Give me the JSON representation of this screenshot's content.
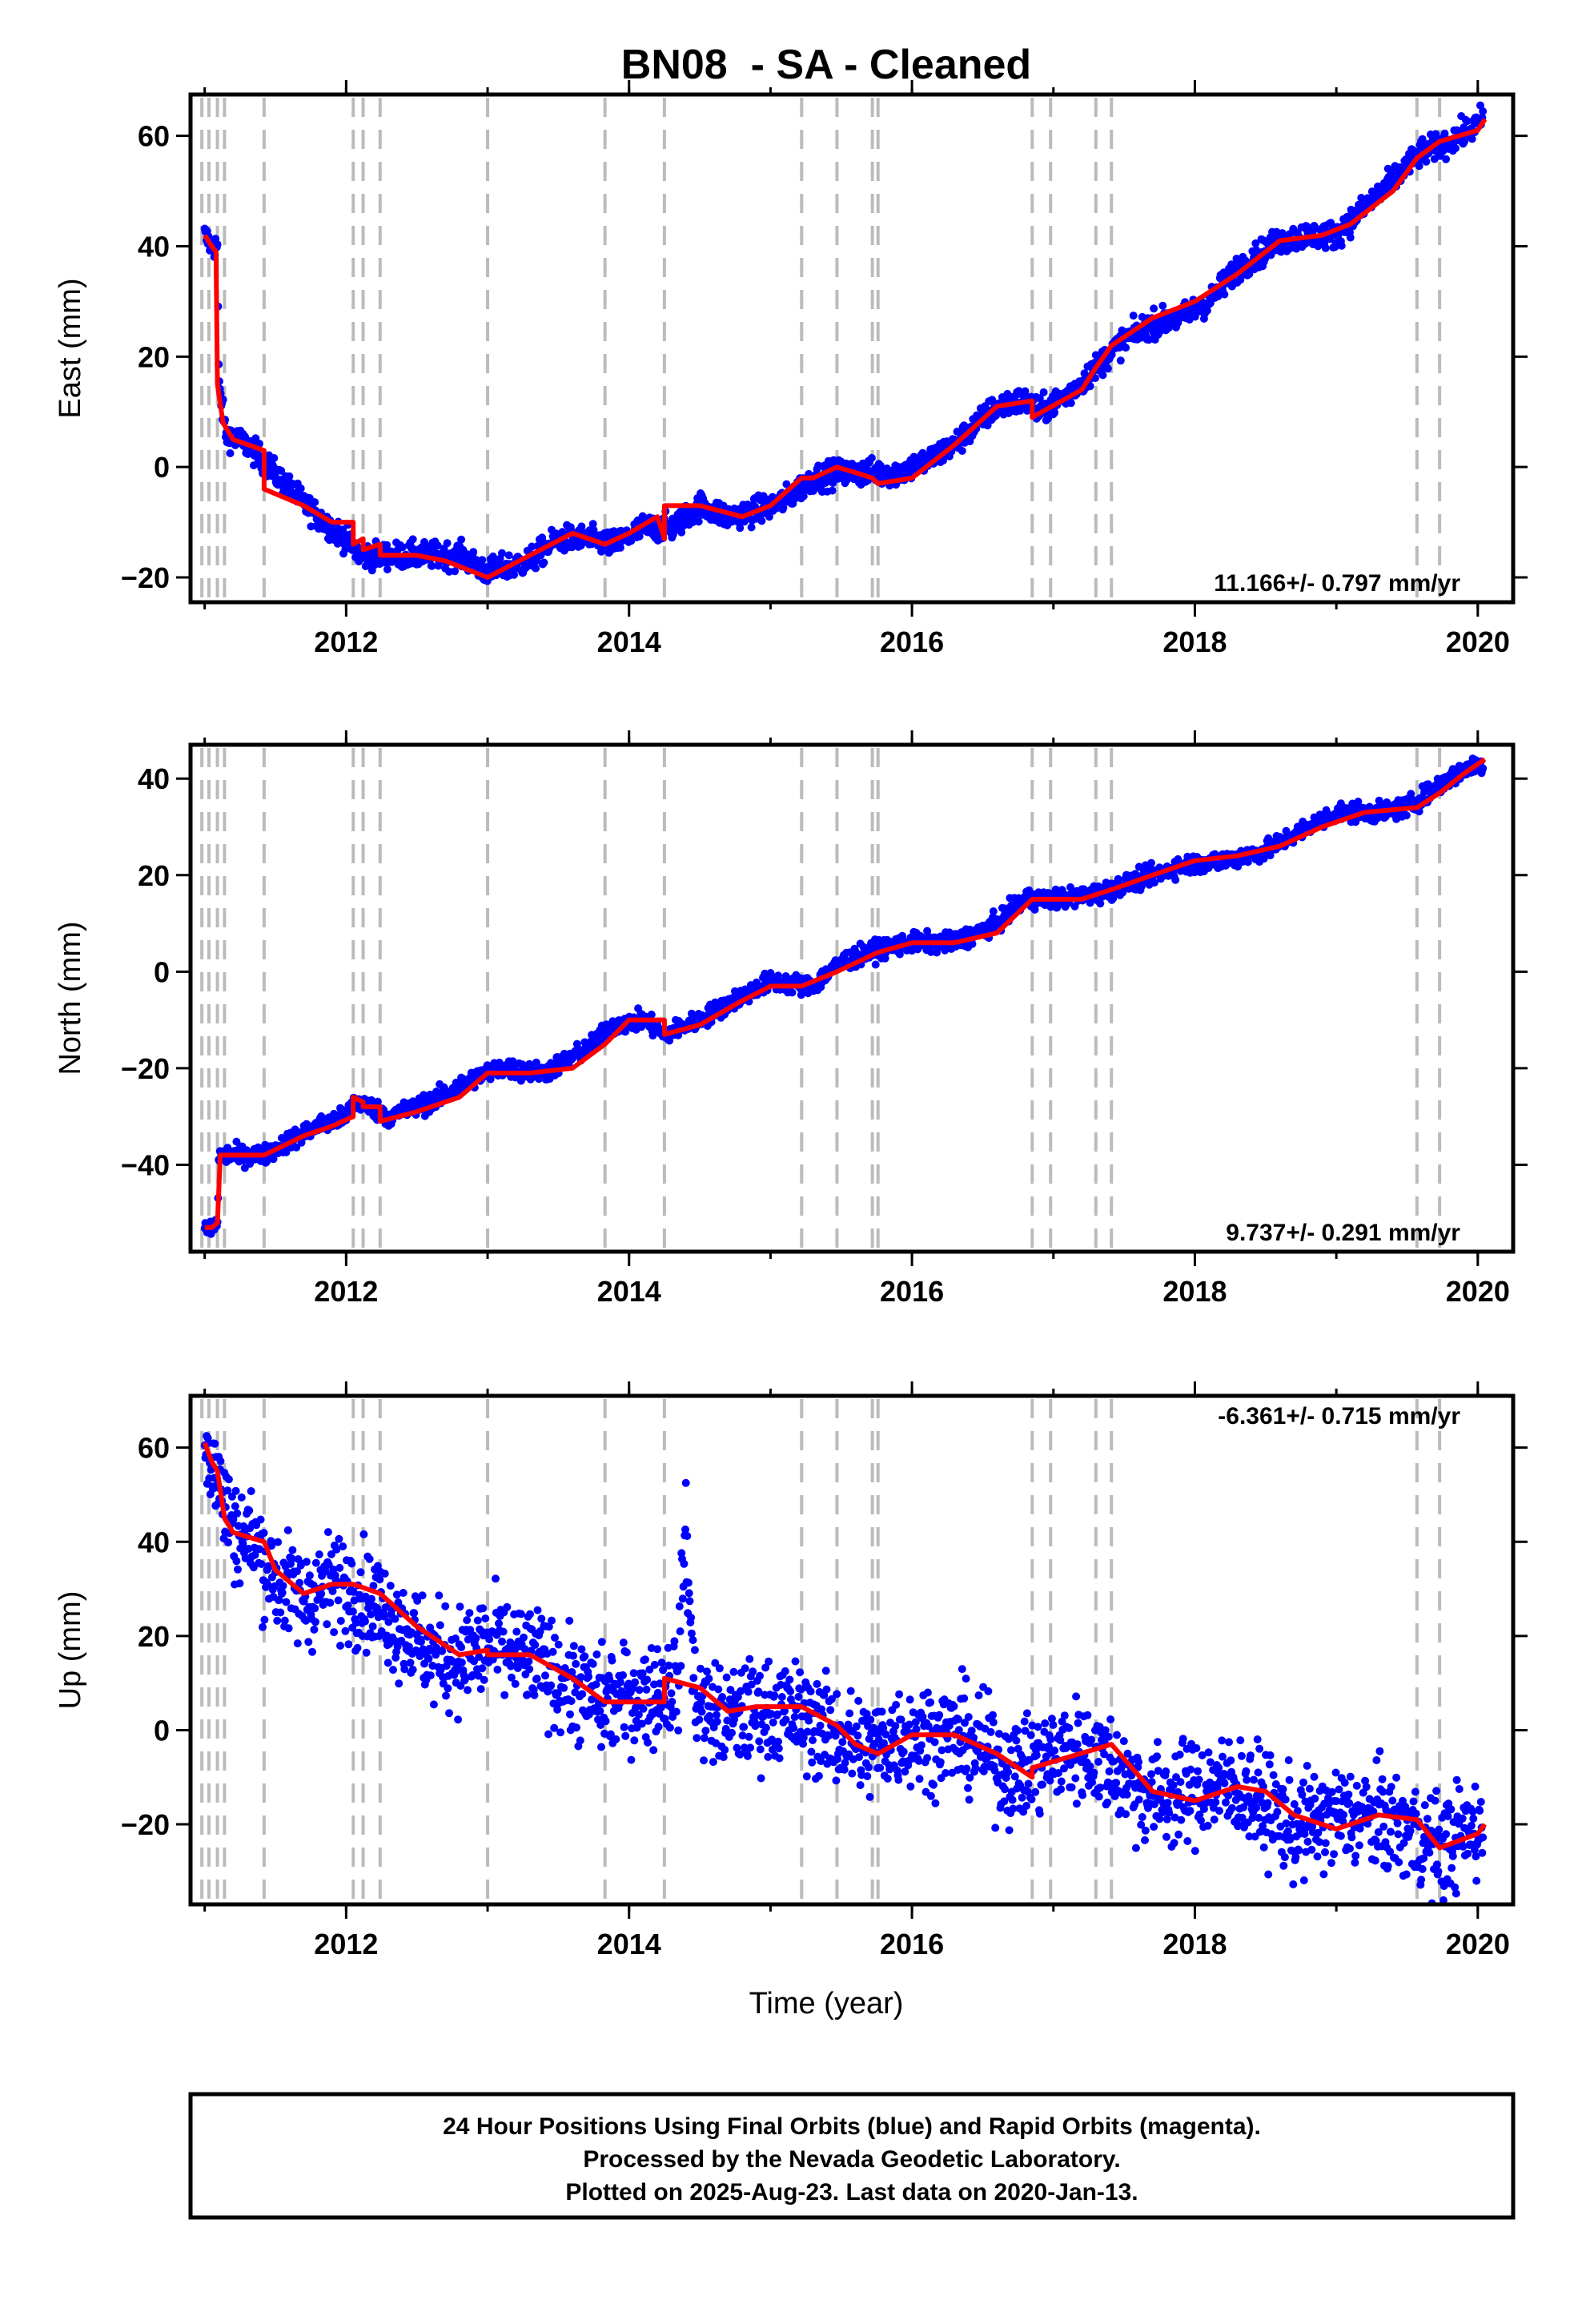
{
  "title": "BN08  - SA - Cleaned",
  "colors": {
    "points": "#0000ff",
    "model": "#ff0000",
    "offsets": "#bbbbbb",
    "frame": "#000000"
  },
  "x_axis_label": "Time (year)",
  "footer": {
    "line1": "24 Hour Positions Using Final Orbits (blue) and Rapid Orbits (magenta).",
    "line2": "Processed by the Nevada Geodetic Laboratory.",
    "line3": "Plotted on 2025-Aug-23. Last data on 2020-Jan-13."
  },
  "chart_data": [
    {
      "type": "scatter",
      "component": "East",
      "ylabel": "East (mm)",
      "rate_text": "11.166+/- 0.797 mm/yr",
      "xlim": [
        2010.9,
        2020.25
      ],
      "ylim": [
        -24.5,
        67.5
      ],
      "xticks": [
        2012,
        2014,
        2016,
        2018,
        2020
      ],
      "yticks": [
        -20,
        0,
        20,
        40,
        60
      ],
      "grid": false,
      "offset_epochs": [
        2010.98,
        2011.03,
        2011.09,
        2011.14,
        2011.42,
        2012.05,
        2012.12,
        2012.24,
        2013.0,
        2013.83,
        2014.25,
        2015.22,
        2015.47,
        2015.72,
        2015.76,
        2016.85,
        2016.98,
        2017.3,
        2017.41,
        2019.57,
        2019.73
      ],
      "series": [
        {
          "role": "daily positions",
          "scatter": 1.2,
          "x": [
            2011.0,
            2011.05,
            2011.09,
            2011.1,
            2011.15,
            2011.3,
            2011.42,
            2011.6,
            2011.8,
            2012.0,
            2012.1,
            2012.3,
            2012.5,
            2012.8,
            2013.0,
            2013.3,
            2013.5,
            2013.7,
            2013.9,
            2014.1,
            2014.3,
            2014.5,
            2014.7,
            2014.9,
            2015.1,
            2015.3,
            2015.5,
            2015.7,
            2015.9,
            2016.1,
            2016.3,
            2016.6,
            2016.8,
            2016.9,
            2017.1,
            2017.3,
            2017.5,
            2017.7,
            2017.9,
            2018.1,
            2018.3,
            2018.6,
            2018.8,
            2019.0,
            2019.2,
            2019.4,
            2019.6,
            2019.8,
            2020.0,
            2020.04
          ],
          "y": [
            42,
            40,
            40,
            15,
            6,
            4,
            1,
            -4,
            -9,
            -13,
            -16,
            -16,
            -16,
            -16,
            -19,
            -17,
            -13,
            -13,
            -14,
            -11,
            -11,
            -7,
            -9,
            -8,
            -6,
            -2,
            -1,
            -1,
            -1,
            1,
            4,
            11,
            12,
            10,
            13,
            18,
            23,
            26,
            27,
            30,
            36,
            41,
            42,
            42,
            47,
            52,
            57,
            59,
            62,
            64
          ]
        },
        {
          "role": "model fit",
          "x": [
            2011.0,
            2011.05,
            2011.08,
            2011.09,
            2011.13,
            2011.2,
            2011.42,
            2011.42,
            2011.7,
            2011.9,
            2012.05,
            2012.05,
            2012.12,
            2012.12,
            2012.24,
            2012.24,
            2012.5,
            2012.7,
            2013.0,
            2013.3,
            2013.6,
            2013.83,
            2014.0,
            2014.2,
            2014.25,
            2014.25,
            2014.5,
            2014.8,
            2015.0,
            2015.22,
            2015.3,
            2015.47,
            2015.6,
            2015.72,
            2015.76,
            2016.0,
            2016.3,
            2016.6,
            2016.85,
            2016.85,
            2017.2,
            2017.3,
            2017.41,
            2017.7,
            2018.0,
            2018.3,
            2018.6,
            2018.9,
            2019.1,
            2019.4,
            2019.57,
            2019.73,
            2020.0,
            2020.05
          ],
          "y": [
            42,
            40,
            39,
            15,
            8,
            5,
            3,
            -4,
            -7,
            -10,
            -10,
            -14,
            -13,
            -15,
            -14,
            -16,
            -16,
            -17,
            -20,
            -16,
            -12,
            -14,
            -12,
            -9,
            -13,
            -7,
            -7,
            -9,
            -7,
            -2,
            -2,
            0,
            -1,
            -2,
            -3,
            -2,
            4,
            11,
            12,
            9,
            14,
            18,
            22,
            27,
            30,
            35,
            41,
            42,
            44,
            50,
            56,
            59,
            61,
            63
          ]
        }
      ]
    },
    {
      "type": "scatter",
      "component": "North",
      "ylabel": "North (mm)",
      "rate_text": "9.737+/- 0.291 mm/yr",
      "xlim": [
        2010.9,
        2020.25
      ],
      "ylim": [
        -58,
        47
      ],
      "xticks": [
        2012,
        2014,
        2016,
        2018,
        2020
      ],
      "yticks": [
        -40,
        -20,
        0,
        20,
        40
      ],
      "grid": false,
      "offset_epochs": [
        2010.98,
        2011.03,
        2011.09,
        2011.14,
        2011.42,
        2012.05,
        2012.12,
        2012.24,
        2013.0,
        2013.83,
        2014.25,
        2015.22,
        2015.47,
        2015.72,
        2015.76,
        2016.85,
        2016.98,
        2017.3,
        2017.41,
        2019.57,
        2019.73
      ],
      "series": [
        {
          "role": "daily positions",
          "scatter": 1.0,
          "x": [
            2011.0,
            2011.05,
            2011.09,
            2011.1,
            2011.3,
            2011.42,
            2011.6,
            2011.8,
            2012.0,
            2012.05,
            2012.1,
            2012.3,
            2012.6,
            2012.9,
            2013.1,
            2013.4,
            2013.7,
            2013.9,
            2014.1,
            2014.25,
            2014.5,
            2014.8,
            2015.0,
            2015.3,
            2015.5,
            2015.8,
            2016.0,
            2016.3,
            2016.6,
            2016.8,
            2017.0,
            2017.3,
            2017.6,
            2017.9,
            2018.2,
            2018.5,
            2018.8,
            2019.0,
            2019.3,
            2019.5,
            2019.7,
            2019.9,
            2020.04
          ],
          "y": [
            -53,
            -53,
            -52,
            -38,
            -38,
            -38,
            -35,
            -32,
            -30,
            -27,
            -27,
            -30,
            -27,
            -22,
            -20,
            -21,
            -16,
            -11,
            -10,
            -13,
            -10,
            -5,
            -2,
            -3,
            2,
            5,
            6,
            6,
            10,
            15,
            15,
            16,
            19,
            22,
            23,
            25,
            30,
            33,
            33,
            34,
            38,
            42,
            43
          ]
        },
        {
          "role": "model fit",
          "x": [
            2011.0,
            2011.05,
            2011.09,
            2011.11,
            2011.2,
            2011.42,
            2011.7,
            2011.9,
            2012.05,
            2012.05,
            2012.12,
            2012.12,
            2012.24,
            2012.24,
            2012.5,
            2012.8,
            2013.0,
            2013.3,
            2013.6,
            2013.83,
            2014.0,
            2014.25,
            2014.25,
            2014.5,
            2014.8,
            2015.0,
            2015.22,
            2015.47,
            2015.76,
            2016.0,
            2016.3,
            2016.6,
            2016.85,
            2017.2,
            2017.41,
            2017.7,
            2018.0,
            2018.3,
            2018.6,
            2018.9,
            2019.2,
            2019.57,
            2019.73,
            2019.9,
            2020.05
          ],
          "y": [
            -53,
            -53,
            -52,
            -38,
            -38,
            -38,
            -34,
            -32,
            -30,
            -26,
            -27,
            -28,
            -28,
            -31,
            -29,
            -26,
            -21,
            -21,
            -20,
            -15,
            -10,
            -10,
            -13,
            -11,
            -6,
            -3,
            -3,
            0,
            4,
            6,
            6,
            8,
            15,
            15,
            17,
            20,
            23,
            24,
            26,
            30,
            33,
            34,
            37,
            41,
            44
          ]
        }
      ]
    },
    {
      "type": "scatter",
      "component": "Up",
      "ylabel": "Up (mm)",
      "rate_text": "-6.361+/- 0.715 mm/yr",
      "xlim": [
        2010.9,
        2020.25
      ],
      "ylim": [
        -37,
        71
      ],
      "xticks": [
        2012,
        2014,
        2016,
        2018,
        2020
      ],
      "yticks": [
        -20,
        0,
        20,
        40,
        60
      ],
      "grid": false,
      "offset_epochs": [
        2010.98,
        2011.03,
        2011.09,
        2011.14,
        2011.42,
        2012.05,
        2012.12,
        2012.24,
        2013.0,
        2013.83,
        2014.25,
        2015.22,
        2015.47,
        2015.72,
        2015.76,
        2016.85,
        2016.98,
        2017.3,
        2017.41,
        2019.57,
        2019.73
      ],
      "series": [
        {
          "role": "daily positions",
          "scatter": 5.5,
          "x": [
            2011.0,
            2011.05,
            2011.1,
            2011.2,
            2011.35,
            2011.5,
            2011.7,
            2011.9,
            2012.05,
            2012.2,
            2012.4,
            2012.6,
            2012.8,
            2013.0,
            2013.2,
            2013.4,
            2013.6,
            2013.8,
            2014.0,
            2014.2,
            2014.35,
            2014.4,
            2014.45,
            2014.5,
            2014.7,
            2014.9,
            2015.1,
            2015.3,
            2015.5,
            2015.7,
            2015.9,
            2016.1,
            2016.3,
            2016.5,
            2016.7,
            2016.9,
            2017.1,
            2017.3,
            2017.5,
            2017.7,
            2017.9,
            2018.1,
            2018.3,
            2018.5,
            2018.7,
            2018.9,
            2019.1,
            2019.3,
            2019.5,
            2019.7,
            2019.9,
            2020.04
          ],
          "y": [
            62,
            57,
            52,
            43,
            40,
            32,
            28,
            31,
            30,
            27,
            22,
            16,
            15,
            18,
            16,
            14,
            9,
            6,
            7,
            8,
            11,
            45,
            12,
            5,
            2,
            4,
            4,
            2,
            -2,
            -4,
            -1,
            -1,
            -1,
            -4,
            -9,
            -7,
            -4,
            -5,
            -10,
            -14,
            -14,
            -12,
            -12,
            -16,
            -21,
            -19,
            -18,
            -19,
            -21,
            -25,
            -22,
            -21
          ]
        },
        {
          "role": "model fit",
          "x": [
            2011.0,
            2011.05,
            2011.09,
            2011.14,
            2011.2,
            2011.42,
            2011.5,
            2011.7,
            2011.9,
            2012.05,
            2012.24,
            2012.5,
            2012.8,
            2013.0,
            2013.0,
            2013.3,
            2013.6,
            2013.83,
            2014.0,
            2014.25,
            2014.25,
            2014.5,
            2014.7,
            2014.9,
            2015.22,
            2015.47,
            2015.6,
            2015.76,
            2016.0,
            2016.3,
            2016.6,
            2016.85,
            2016.85,
            2017.3,
            2017.41,
            2017.7,
            2018.0,
            2018.3,
            2018.5,
            2018.7,
            2019.0,
            2019.3,
            2019.57,
            2019.73,
            2020.0,
            2020.05
          ],
          "y": [
            61,
            57,
            55,
            45,
            42,
            40,
            34,
            29,
            31,
            31,
            29,
            22,
            16,
            17,
            16,
            16,
            11,
            6,
            6,
            6,
            11,
            9,
            4,
            5,
            5,
            1,
            -3,
            -5,
            -1,
            -1,
            -5,
            -10,
            -8,
            -4,
            -3,
            -13,
            -15,
            -12,
            -13,
            -18,
            -21,
            -18,
            -19,
            -25,
            -22,
            -20
          ]
        }
      ]
    }
  ]
}
